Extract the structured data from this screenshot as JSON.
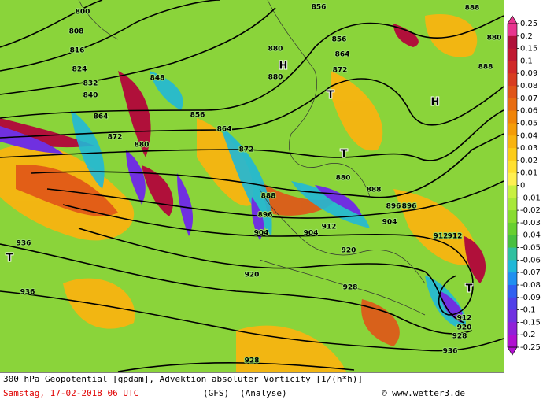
{
  "footer": {
    "title": "300 hPa Geopotential [gpdam], Advektion absoluter Vorticity [1/(h*h)]",
    "date": "Samstag, 17-02-2018  06 UTC",
    "model": "(GFS)",
    "run": "(Analyse)",
    "credit": "© www.wetter3.de"
  },
  "colorbar": {
    "ticks": [
      0.25,
      0.2,
      0.15,
      0.1,
      0.09,
      0.08,
      0.07,
      0.06,
      0.05,
      0.04,
      0.03,
      0.02,
      0.01,
      0,
      -0.01,
      -0.02,
      -0.03,
      -0.04,
      -0.05,
      -0.06,
      -0.07,
      -0.08,
      -0.09,
      -0.1,
      -0.15,
      -0.2,
      -0.25
    ],
    "colors": [
      "#e8358f",
      "#b0103a",
      "#c01830",
      "#d02828",
      "#d83c20",
      "#e05418",
      "#e86c10",
      "#f08408",
      "#f49c08",
      "#f8b410",
      "#fccc18",
      "#ffe030",
      "#fff050",
      "#c8f040",
      "#a8e838",
      "#88dc30",
      "#68d030",
      "#48c040",
      "#30c0a0",
      "#20b8d8",
      "#2090f0",
      "#3060f0",
      "#5040e8",
      "#7030e0",
      "#9020d8",
      "#b010d0"
    ]
  },
  "contour_labels": [
    "800",
    "808",
    "816",
    "824",
    "832",
    "840",
    "848",
    "856",
    "864",
    "872",
    "880",
    "856",
    "864",
    "872",
    "880",
    "856",
    "864",
    "872",
    "880",
    "888",
    "896",
    "904",
    "912",
    "920",
    "928",
    "936",
    "888",
    "896",
    "904",
    "912",
    "920",
    "928",
    "936",
    "912",
    "912",
    "920",
    "928",
    "936",
    "880",
    "888",
    "896",
    "904",
    "880",
    "888"
  ],
  "pressure_centres": [
    "H",
    "H",
    "T",
    "T",
    "T",
    "T"
  ]
}
